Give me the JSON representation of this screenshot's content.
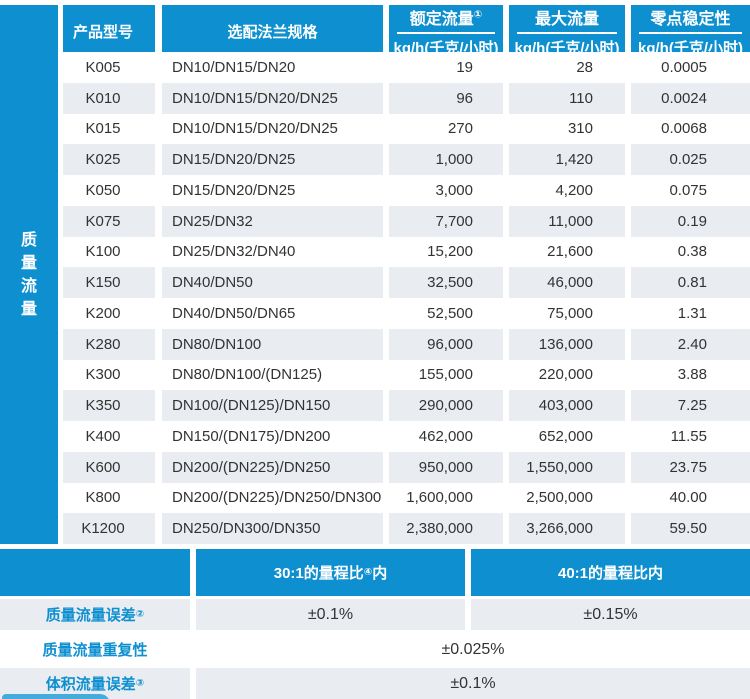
{
  "sidebar": {
    "label": "质量流量"
  },
  "header": {
    "model": "产品型号",
    "flange": "选配法兰规格",
    "rated_title": "额定流量",
    "rated_sup": "①",
    "max_title": "最大流量",
    "zero_title": "零点稳定性",
    "unit": "kg/h(千克/小时)"
  },
  "table": {
    "rows": [
      {
        "model": "K005",
        "flange": "DN10/DN15/DN20",
        "rated": "19",
        "max": "28",
        "zero": "0.0005"
      },
      {
        "model": "K010",
        "flange": "DN10/DN15/DN20/DN25",
        "rated": "96",
        "max": "110",
        "zero": "0.0024"
      },
      {
        "model": "K015",
        "flange": "DN10/DN15/DN20/DN25",
        "rated": "270",
        "max": "310",
        "zero": "0.0068"
      },
      {
        "model": "K025",
        "flange": "DN15/DN20/DN25",
        "rated": "1,000",
        "max": "1,420",
        "zero": "0.025"
      },
      {
        "model": "K050",
        "flange": "DN15/DN20/DN25",
        "rated": "3,000",
        "max": "4,200",
        "zero": "0.075"
      },
      {
        "model": "K075",
        "flange": "DN25/DN32",
        "rated": "7,700",
        "max": "11,000",
        "zero": "0.19"
      },
      {
        "model": "K100",
        "flange": "DN25/DN32/DN40",
        "rated": "15,200",
        "max": "21,600",
        "zero": "0.38"
      },
      {
        "model": "K150",
        "flange": "DN40/DN50",
        "rated": "32,500",
        "max": "46,000",
        "zero": "0.81"
      },
      {
        "model": "K200",
        "flange": "DN40/DN50/DN65",
        "rated": "52,500",
        "max": "75,000",
        "zero": "1.31"
      },
      {
        "model": "K280",
        "flange": "DN80/DN100",
        "rated": "96,000",
        "max": "136,000",
        "zero": "2.40"
      },
      {
        "model": "K300",
        "flange": "DN80/DN100/(DN125)",
        "rated": "155,000",
        "max": "220,000",
        "zero": "3.88"
      },
      {
        "model": "K350",
        "flange": "DN100/(DN125)/DN150",
        "rated": "290,000",
        "max": "403,000",
        "zero": "7.25"
      },
      {
        "model": "K400",
        "flange": "DN150/(DN175)/DN200",
        "rated": "462,000",
        "max": "652,000",
        "zero": "11.55"
      },
      {
        "model": "K600",
        "flange": "DN200/(DN225)/DN250",
        "rated": "950,000",
        "max": "1,550,000",
        "zero": "23.75"
      },
      {
        "model": "K800",
        "flange": "DN200/(DN225)/DN250/DN300",
        "rated": "1,600,000",
        "max": "2,500,000",
        "zero": "40.00"
      },
      {
        "model": "K1200",
        "flange": "DN250/DN300/DN350",
        "rated": "2,380,000",
        "max": "3,266,000",
        "zero": "59.50"
      }
    ]
  },
  "footer": {
    "range30_prefix": "30:1的量程比",
    "range30_sup": "④",
    "range30_suffix": "内",
    "range40": "40:1的量程比内",
    "error_label": "质量流量误差",
    "error_sup": "②",
    "error_val30": "±0.1%",
    "error_val40": "±0.15%",
    "repeat_label": "质量流量重复性",
    "repeat_value": "±0.025%",
    "volume_label": "体积流量误差",
    "volume_sup": "③",
    "volume_value": "±0.1%"
  },
  "colors": {
    "blue": "#0d8fd0",
    "row_gray": "#e9edf1",
    "tab_blue": "#45abdd"
  }
}
